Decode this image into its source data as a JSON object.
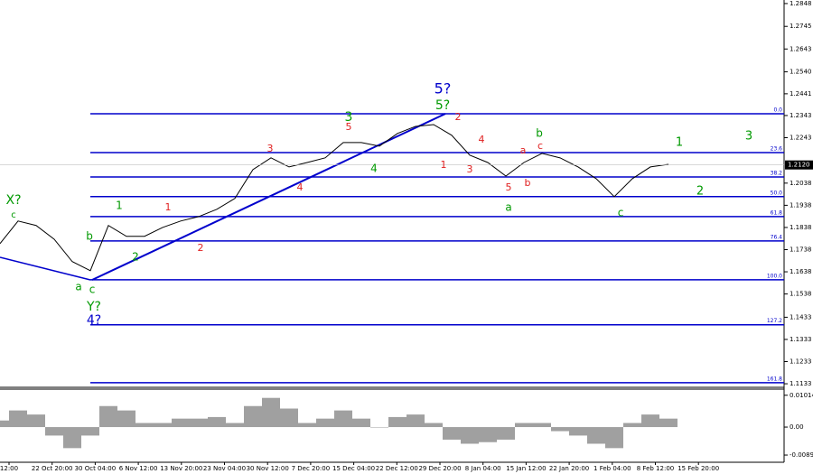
{
  "chart_data": {
    "type": "line",
    "ylim": [
      1.1121,
      1.2864
    ],
    "yticks": [
      1.2848,
      1.2745,
      1.2643,
      {
        "value": 1.254,
        "label": "1.2540"
      },
      1.2441,
      1.2343,
      1.2243,
      1.2038,
      1.1938,
      1.1838,
      1.1738,
      1.1638,
      1.1538,
      1.1433,
      1.1333,
      1.1233,
      1.1133
    ],
    "last_price": {
      "value": 1.212,
      "label": "1.2120"
    },
    "x_labels": [
      "12:00",
      "22 Oct 20:00",
      "30 Oct 04:00",
      "6 Nov 12:00",
      "13 Nov 20:00",
      "23 Nov 04:00",
      "30 Nov 12:00",
      "7 Dec 20:00",
      "15 Dec 04:00",
      "22 Dec 12:00",
      "29 Dec 20:00",
      "8 Jan 04:00",
      "15 Jan 12:00",
      "22 Jan 20:00",
      "1 Feb 04:00",
      "8 Feb 12:00",
      "15 Feb 20:00"
    ],
    "series": [
      {
        "name": "EURUSD",
        "color": "#000000",
        "values": [
          1.1765,
          1.1867,
          1.1847,
          1.1785,
          1.1684,
          1.1643,
          1.1847,
          1.1798,
          1.1798,
          1.1838,
          1.1867,
          1.1887,
          1.192,
          1.1969,
          1.2099,
          1.2152,
          1.2111,
          1.2131,
          1.2152,
          1.2221,
          1.2221,
          1.2205,
          1.2262,
          1.2294,
          1.2302,
          1.2254,
          1.2164,
          1.2131,
          1.207,
          1.2131,
          1.2172,
          1.2152,
          1.2111,
          1.2058,
          1.1977,
          1.2058,
          1.2111,
          1.2123
        ]
      }
    ],
    "fib_color": "#0000cc",
    "fib_levels": [
      {
        "value": 1.2351,
        "label": "0.0"
      },
      {
        "value": 1.2176,
        "label": "23.6"
      },
      {
        "value": 1.2066,
        "label": "38.2"
      },
      {
        "value": 1.1977,
        "label": "50.0"
      },
      {
        "value": 1.1887,
        "label": "61.8"
      },
      {
        "value": 1.1777,
        "label": "76.4"
      },
      {
        "value": 1.1602,
        "label": "100.0"
      },
      {
        "value": 1.1399,
        "label": "127.2"
      },
      {
        "value": 1.1138,
        "label": "161.8"
      }
    ],
    "wave_labels": [
      {
        "text": "X?",
        "color": "#009900"
      },
      {
        "text": "c",
        "color": "#009900"
      },
      {
        "text": "a",
        "color": "#009900"
      },
      {
        "text": "b",
        "color": "#009900"
      },
      {
        "text": "c",
        "color": "#009900"
      },
      {
        "text": "Y?",
        "color": "#009900"
      },
      {
        "text": "4?",
        "color": "#0000cc"
      },
      {
        "text": "1",
        "color": "#009900"
      },
      {
        "text": "2",
        "color": "#009900"
      },
      {
        "text": "1",
        "color": "#e02020"
      },
      {
        "text": "2",
        "color": "#e02020"
      },
      {
        "text": "3",
        "color": "#e02020"
      },
      {
        "text": "4",
        "color": "#e02020"
      },
      {
        "text": "5",
        "color": "#e02020"
      },
      {
        "text": "3",
        "color": "#009900"
      },
      {
        "text": "4",
        "color": "#009900"
      },
      {
        "text": "5?",
        "color": "#0000cc"
      },
      {
        "text": "5?",
        "color": "#009900"
      },
      {
        "text": "2",
        "color": "#e02020"
      },
      {
        "text": "1",
        "color": "#e02020"
      },
      {
        "text": "3",
        "color": "#e02020"
      },
      {
        "text": "4",
        "color": "#e02020"
      },
      {
        "text": "5",
        "color": "#e02020"
      },
      {
        "text": "a",
        "color": "#009900"
      },
      {
        "text": "a",
        "color": "#e02020"
      },
      {
        "text": "b",
        "color": "#e02020"
      },
      {
        "text": "b",
        "color": "#009900"
      },
      {
        "text": "c",
        "color": "#e02020"
      },
      {
        "text": "c",
        "color": "#009900"
      },
      {
        "text": "1",
        "color": "#009900"
      },
      {
        "text": "2",
        "color": "#009900"
      },
      {
        "text": "3",
        "color": "#009900"
      }
    ],
    "oscillator": {
      "type": "histogram",
      "color": "#a0a0a0",
      "ylim": [
        -0.0112,
        0.0118
      ],
      "yticks": [
        0.01014,
        {
          "value": 0,
          "label": "0.00"
        },
        -0.00891
      ],
      "values": [
        0.0021,
        0.0053,
        0.004,
        -0.0027,
        -0.0067,
        -0.0027,
        0.0067,
        0.0053,
        0.0013,
        0.0013,
        0.0027,
        0.0027,
        0.0032,
        0.0013,
        0.0067,
        0.0093,
        0.0059,
        0.0013,
        0.0027,
        0.0053,
        0.0027,
        0,
        0.0032,
        0.004,
        0.0013,
        -0.004,
        -0.0053,
        -0.0048,
        -0.004,
        0.0013,
        0.0013,
        -0.0013,
        -0.0027,
        -0.0053,
        -0.0067,
        0.0013,
        0.004,
        0.0027
      ]
    }
  }
}
